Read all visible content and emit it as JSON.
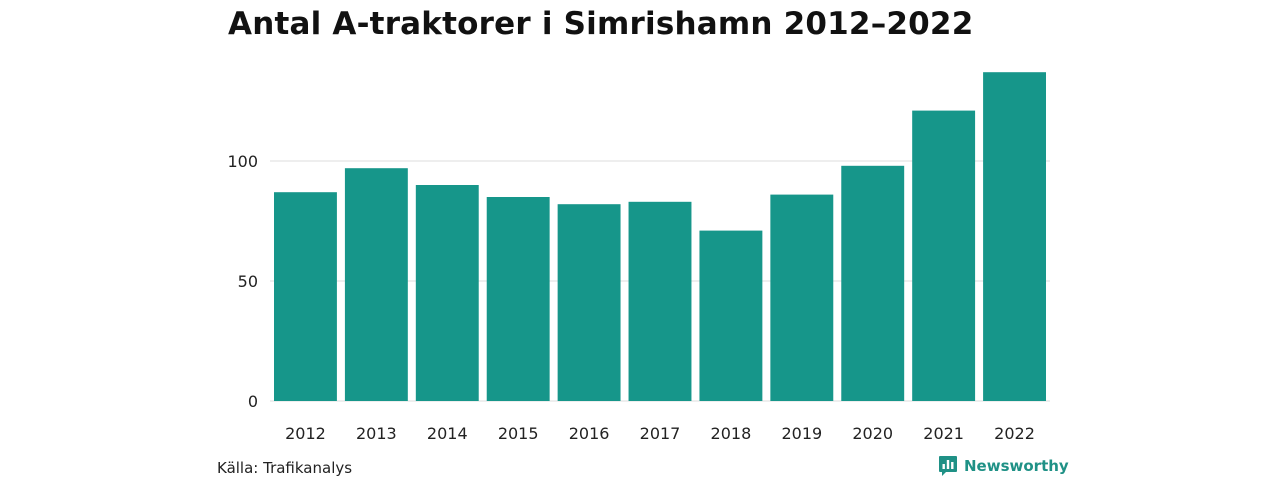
{
  "chart_data": {
    "type": "bar",
    "title": "Antal A-traktorer i Simrishamn 2012–2022",
    "categories": [
      "2012",
      "2013",
      "2014",
      "2015",
      "2016",
      "2017",
      "2018",
      "2019",
      "2020",
      "2021",
      "2022"
    ],
    "values": [
      87,
      97,
      90,
      85,
      82,
      83,
      71,
      86,
      98,
      121,
      137
    ],
    "yticks": [
      0,
      50,
      100
    ],
    "ylim": [
      0,
      140
    ],
    "grid": "horizontal",
    "bar_color": "#16968a",
    "xlabel": "",
    "ylabel": ""
  },
  "footer": {
    "source": "Källa: Trafikanalys",
    "brand": "Newsworthy",
    "brand_icon": "newsworthy-logo-icon",
    "brand_color": "#1f9186"
  }
}
